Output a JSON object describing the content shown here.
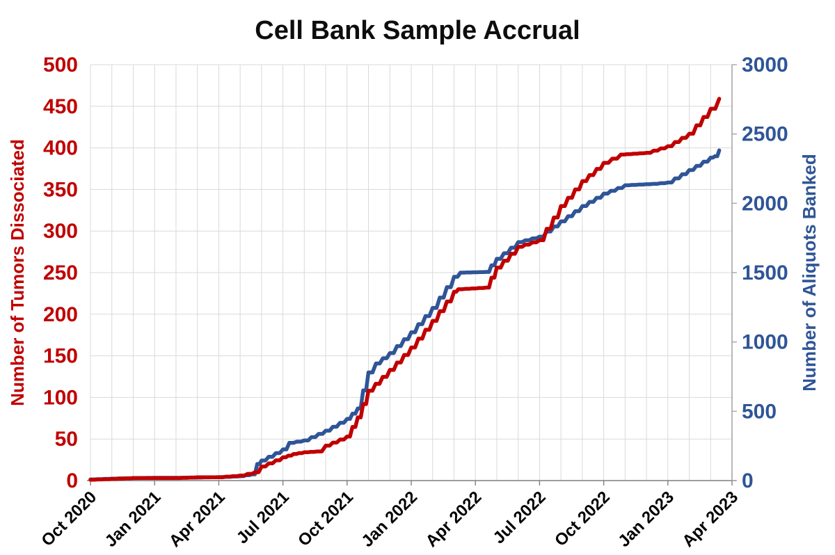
{
  "title": "Cell Bank Sample Accrual",
  "colors": {
    "red_series": "#C00000",
    "blue_series": "#2F5597",
    "gridline": "#D9D9D9",
    "bottom_axis": "#7f7f7f",
    "right_axis_line": "#a6a6a6",
    "x_tick_text": "#000000",
    "title_text": "#0d0d0d"
  },
  "chart_data": {
    "type": "line",
    "title": "Cell Bank Sample Accrual",
    "subtitle": "",
    "legend": "none",
    "grid": "monthly vertical + 50-unit horizontal, light gray",
    "x_domain_months": [
      "Oct 2020",
      "Apr 2023"
    ],
    "x_tick_labels": [
      "Oct 2020",
      "Jan 2021",
      "Apr 2021",
      "Jul 2021",
      "Oct 2021",
      "Jan 2022",
      "Apr 2022",
      "Jul 2022",
      "Oct 2022",
      "Jan 2023",
      "Apr 2023"
    ],
    "x_tick_label_rotation_deg": -45,
    "left_axis": {
      "label": "Number of Tumors Dissociated",
      "min": 0,
      "max": 500,
      "step": 50,
      "color": "#C00000",
      "tick_values": [
        0,
        50,
        100,
        150,
        200,
        250,
        300,
        350,
        400,
        450,
        500
      ]
    },
    "right_axis": {
      "label": "Number of Aliquots Banked",
      "min": 0,
      "max": 3000,
      "step": 500,
      "color": "#2F5597",
      "tick_values": [
        0,
        500,
        1000,
        1500,
        2000,
        2500,
        3000
      ]
    },
    "series": [
      {
        "name": "Tumors Dissociated",
        "axis": "left",
        "color": "#C00000",
        "style": "stepped cumulative line",
        "points_month_value": [
          [
            0,
            1
          ],
          [
            1,
            2
          ],
          [
            2,
            3
          ],
          [
            3,
            3
          ],
          [
            4,
            3
          ],
          [
            5,
            4
          ],
          [
            6,
            4
          ],
          [
            7,
            6
          ],
          [
            7.7,
            10
          ],
          [
            8,
            17
          ],
          [
            9,
            28
          ],
          [
            9.5,
            32
          ],
          [
            10,
            34
          ],
          [
            10.6,
            35
          ],
          [
            11,
            42
          ],
          [
            12,
            53
          ],
          [
            12.5,
            76
          ],
          [
            13,
            108
          ],
          [
            14,
            133
          ],
          [
            15,
            160
          ],
          [
            16,
            192
          ],
          [
            17,
            227
          ],
          [
            17.2,
            230
          ],
          [
            18.5,
            232
          ],
          [
            19,
            256
          ],
          [
            20,
            281
          ],
          [
            21,
            289
          ],
          [
            22,
            330
          ],
          [
            23,
            360
          ],
          [
            24,
            382
          ],
          [
            24.8,
            392
          ],
          [
            26,
            394
          ],
          [
            27,
            402
          ],
          [
            28,
            417
          ],
          [
            29,
            447
          ],
          [
            29.4,
            459
          ]
        ]
      },
      {
        "name": "Aliquots Banked",
        "axis": "right",
        "color": "#2F5597",
        "style": "stepped cumulative line",
        "points_month_value": [
          [
            0,
            8
          ],
          [
            1,
            14
          ],
          [
            2,
            18
          ],
          [
            3,
            20
          ],
          [
            4,
            20
          ],
          [
            5,
            22
          ],
          [
            6,
            25
          ],
          [
            7,
            32
          ],
          [
            7.55,
            45
          ],
          [
            7.8,
            120
          ],
          [
            8,
            145
          ],
          [
            9,
            225
          ],
          [
            9.3,
            272
          ],
          [
            10,
            290
          ],
          [
            11,
            360
          ],
          [
            12,
            445
          ],
          [
            12.5,
            520
          ],
          [
            13,
            780
          ],
          [
            13.35,
            845
          ],
          [
            14,
            920
          ],
          [
            15,
            1070
          ],
          [
            16,
            1245
          ],
          [
            17,
            1470
          ],
          [
            17.3,
            1500
          ],
          [
            18.5,
            1505
          ],
          [
            19,
            1600
          ],
          [
            20,
            1720
          ],
          [
            21,
            1760
          ],
          [
            22,
            1870
          ],
          [
            23,
            1980
          ],
          [
            24,
            2070
          ],
          [
            25,
            2130
          ],
          [
            26.3,
            2140
          ],
          [
            27,
            2150
          ],
          [
            28,
            2240
          ],
          [
            29,
            2330
          ],
          [
            29.2,
            2340
          ],
          [
            29.4,
            2382
          ]
        ]
      }
    ],
    "plot_notes": "Blue plateau at 1500 aliquots Mar-Apr 2022; red/blue cross ~Jul 2022 near 300 tumors / 1800 aliquots; both series flat near zero Oct 2020-May 2021."
  }
}
